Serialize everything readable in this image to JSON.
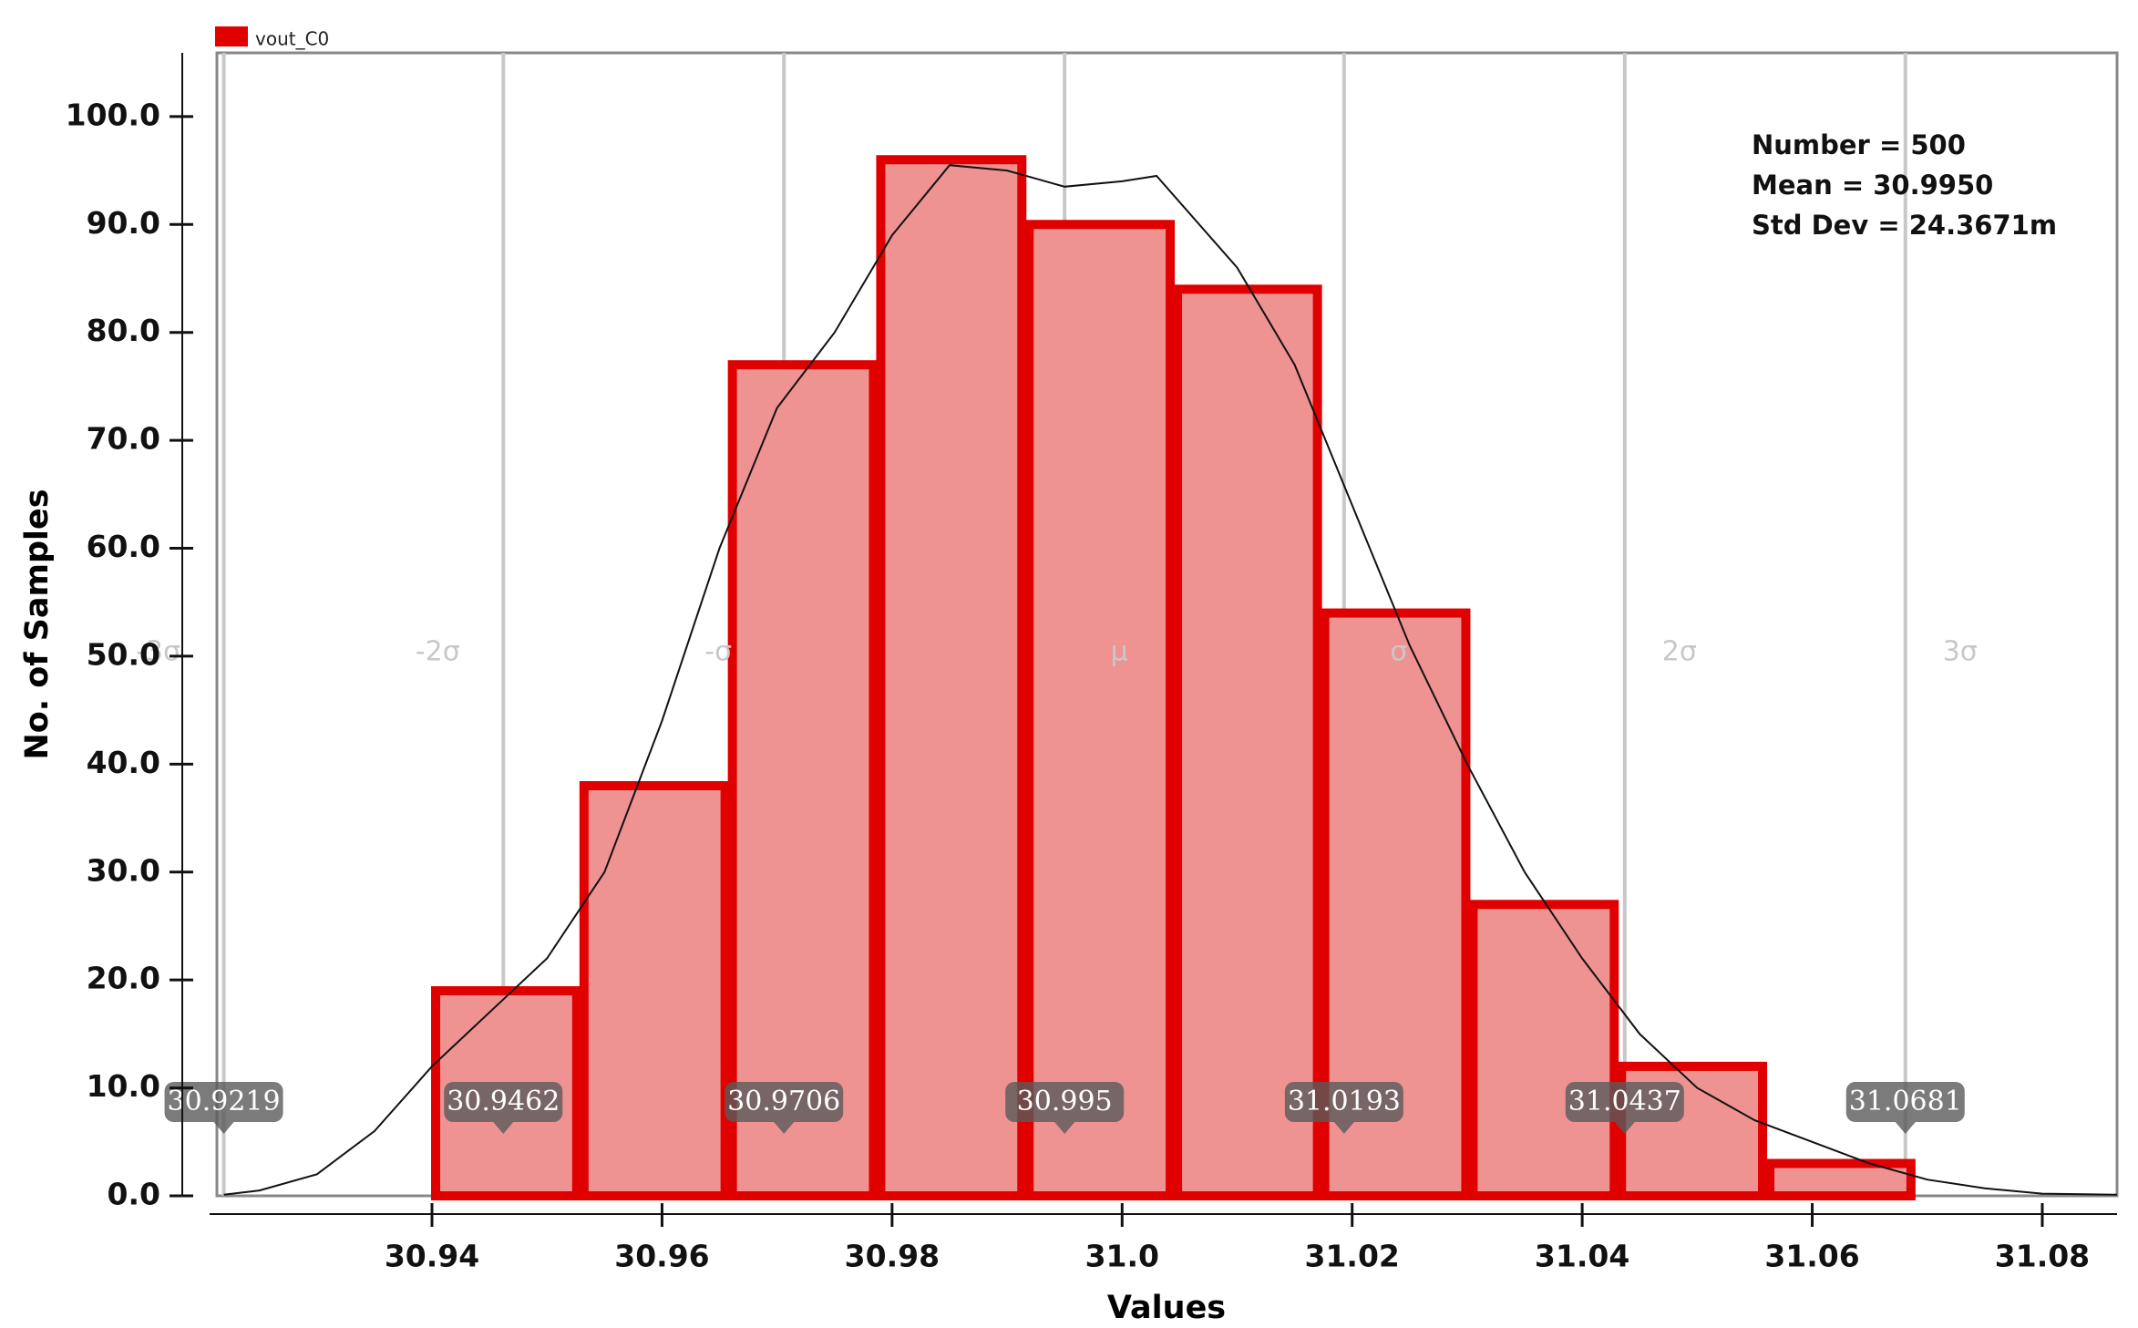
{
  "chart_data": {
    "type": "histogram",
    "legend": "vout_C0",
    "color": "#e00000",
    "fill": "#ef9292",
    "xlabel": "Values",
    "ylabel": "No. of Samples",
    "bins": [
      30.94,
      30.9529,
      30.9658,
      30.9787,
      30.9916,
      31.0045,
      31.0173,
      31.0302,
      31.0431,
      31.056,
      31.0689
    ],
    "counts": [
      19,
      38,
      77,
      96,
      90,
      84,
      54,
      27,
      12,
      3
    ],
    "xlim": [
      30.9213,
      31.0865
    ],
    "ylim": [
      0,
      105.9
    ],
    "xticks": [
      30.94,
      30.96,
      30.98,
      {
        "value": 31.0,
        "label": "31.0"
      },
      31.02,
      31.04,
      31.06,
      31.08
    ],
    "yticks": [
      {
        "value": 0,
        "label": "0.0"
      },
      {
        "value": 10,
        "label": "10.0"
      },
      {
        "value": 20,
        "label": "20.0"
      },
      {
        "value": 30,
        "label": "30.0"
      },
      {
        "value": 40,
        "label": "40.0"
      },
      {
        "value": 50,
        "label": "50.0"
      },
      {
        "value": 60,
        "label": "60.0"
      },
      {
        "value": 70,
        "label": "70.0"
      },
      {
        "value": 80,
        "label": "80.0"
      },
      {
        "value": 90,
        "label": "90.0"
      },
      {
        "value": 100,
        "label": "100.0"
      }
    ],
    "sigma_lines": [
      {
        "label": "-3σ",
        "value": 30.9219
      },
      {
        "label": "-2σ",
        "value": 30.9462
      },
      {
        "label": "-σ",
        "value": 30.9706
      },
      {
        "label": "μ",
        "value": 30.995
      },
      {
        "label": "σ",
        "value": 31.0193
      },
      {
        "label": "2σ",
        "value": 31.0437
      },
      {
        "label": "3σ",
        "value": 31.0681
      }
    ],
    "curve": {
      "x": [
        30.9219,
        30.925,
        30.93,
        30.935,
        30.94,
        30.945,
        30.95,
        30.955,
        30.96,
        30.965,
        30.97,
        30.975,
        30.98,
        30.985,
        30.99,
        30.995,
        31.0,
        31.003,
        31.01,
        31.015,
        31.02,
        31.025,
        31.03,
        31.035,
        31.04,
        31.045,
        31.05,
        31.055,
        31.06,
        31.065,
        31.07,
        31.075,
        31.08,
        31.0865
      ],
      "values": [
        0.1,
        0.5,
        2,
        6,
        12,
        17,
        22,
        30,
        44,
        60,
        73,
        80,
        89,
        95.5,
        95,
        93.5,
        94,
        94.5,
        86,
        77,
        64,
        51,
        40,
        30,
        22,
        15,
        10,
        7,
        5,
        3,
        1.5,
        0.7,
        0.2,
        0.1
      ]
    },
    "stats": [
      "Number = 500",
      "Mean = 30.9950",
      "Std Dev = 24.3671m"
    ]
  }
}
